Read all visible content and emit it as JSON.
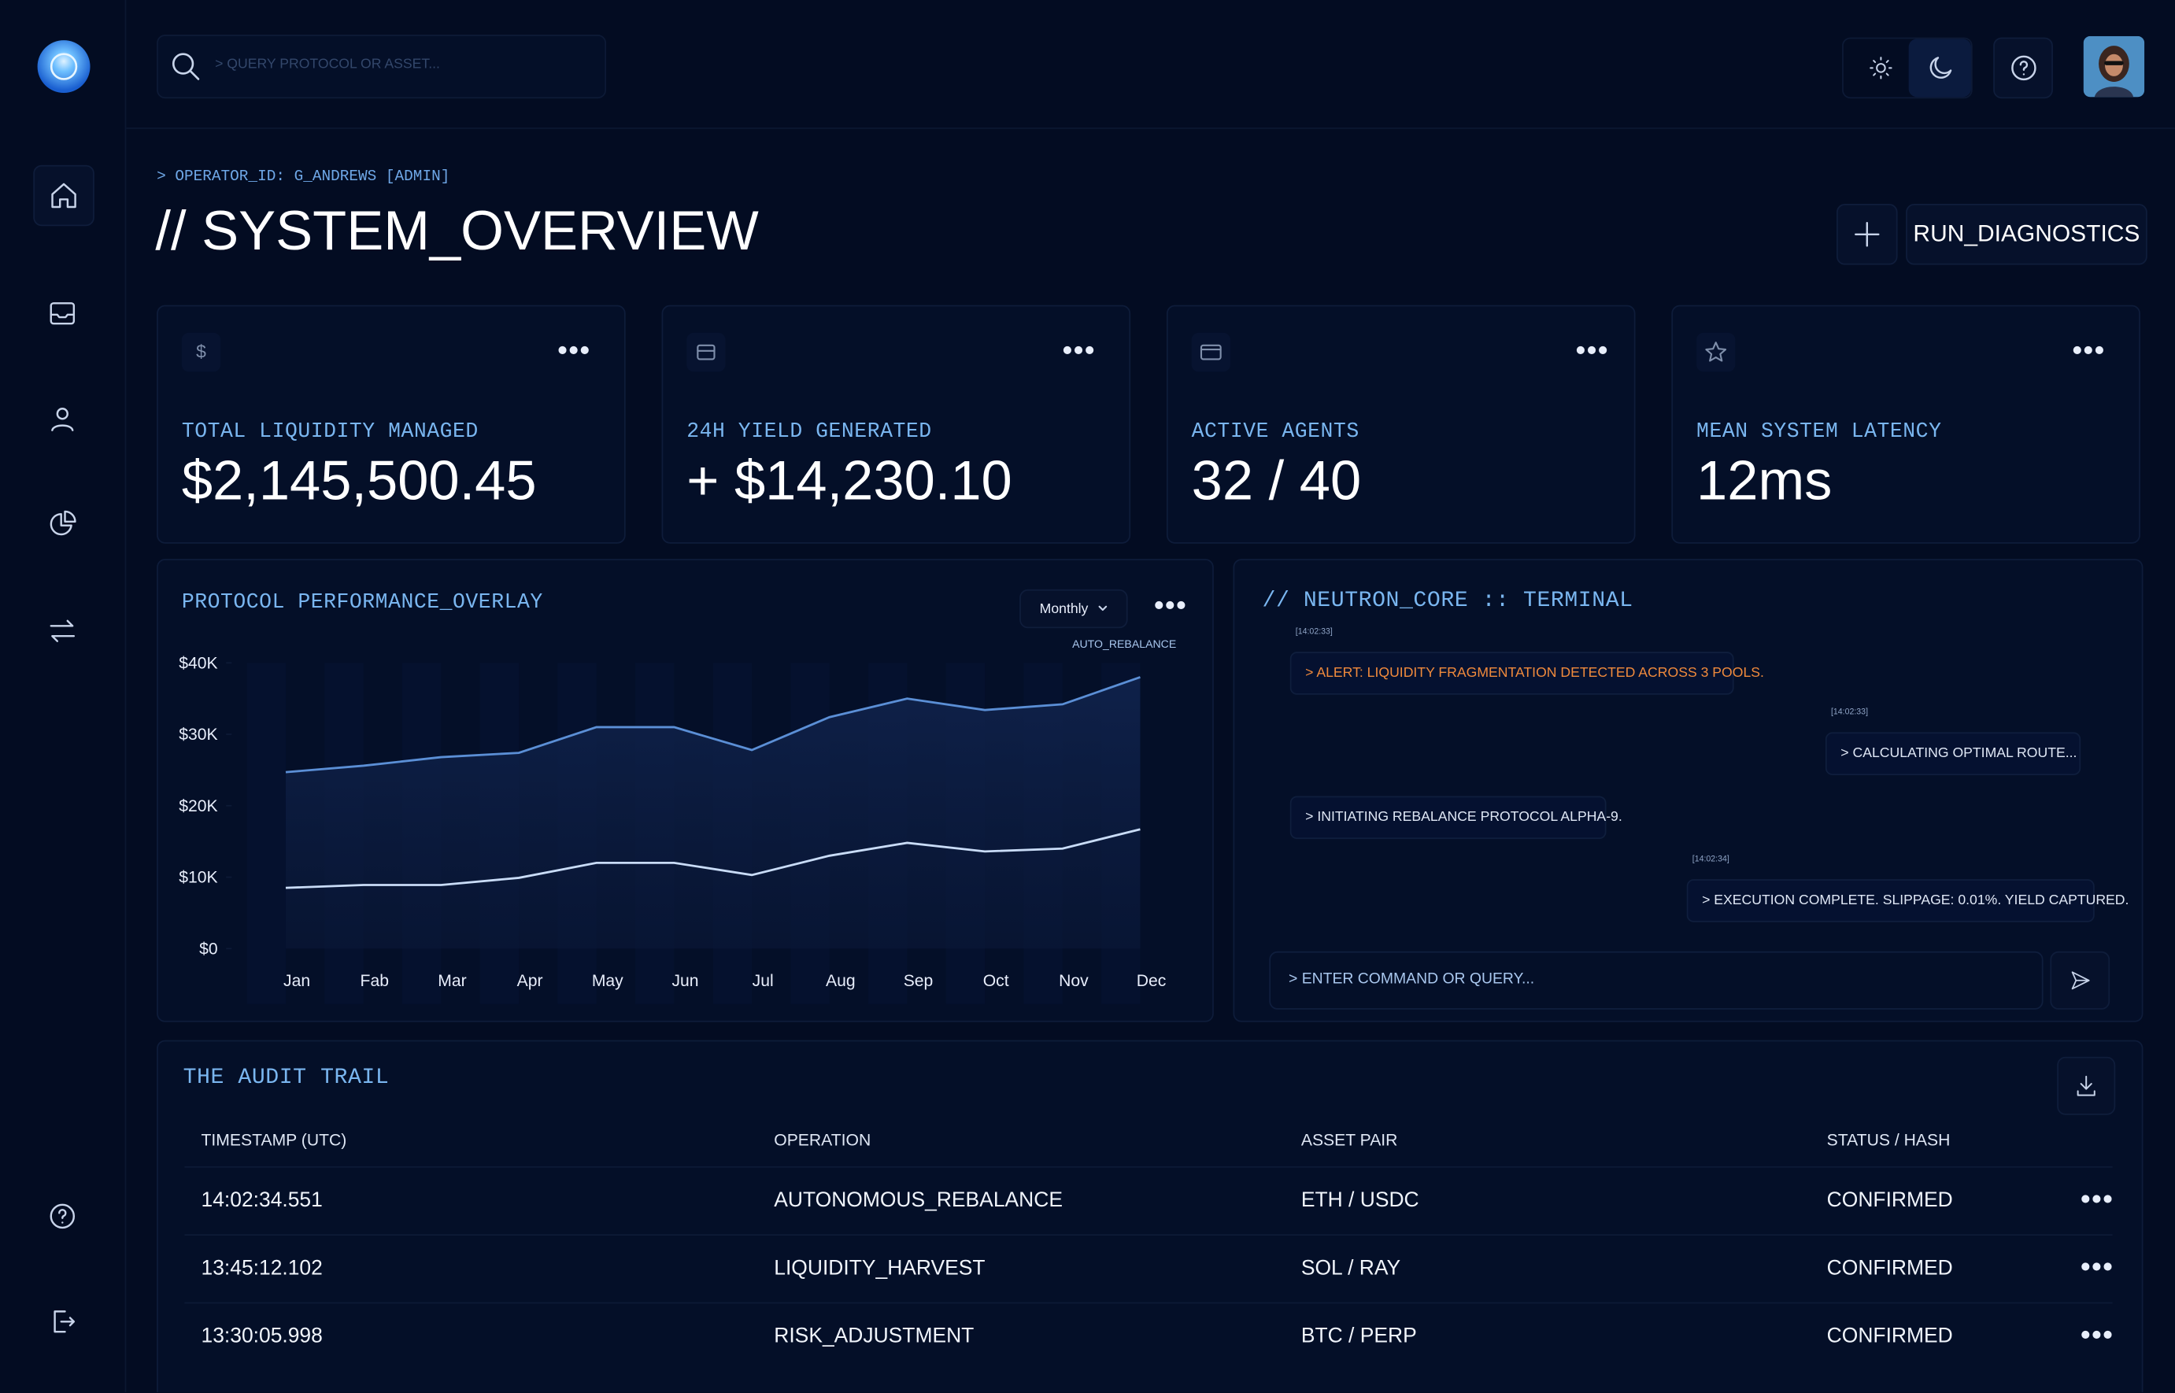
{
  "search_placeholder": "> QUERY PROTOCOL OR ASSET...",
  "operator": "> OPERATOR_ID: G_ANDREWS [ADMIN]",
  "page_title": "// SYSTEM_OVERVIEW",
  "diagnostics_button": "RUN_DIAGNOSTICS",
  "cards": [
    {
      "label": "TOTAL LIQUIDITY MANAGED",
      "value": "$2,145,500.45"
    },
    {
      "label": "24H YIELD GENERATED",
      "value": "+ $14,230.10"
    },
    {
      "label": "ACTIVE AGENTS",
      "value": "32 / 40"
    },
    {
      "label": "MEAN SYSTEM LATENCY",
      "value": "12ms"
    }
  ],
  "chart_data": {
    "type": "line",
    "title": "PROTOCOL PERFORMANCE_OVERLAY",
    "period": "Monthly",
    "annotation": "AUTO_REBALANCE",
    "categories": [
      "Jan",
      "Fab",
      "Mar",
      "Apr",
      "May",
      "Jun",
      "Jul",
      "Aug",
      "Sep",
      "Oct",
      "Nov",
      "Dec"
    ],
    "series": [
      {
        "color": "#5b8fd6",
        "values": [
          24700,
          25600,
          26800,
          27400,
          31000,
          31000,
          27800,
          32400,
          35000,
          33400,
          34200,
          38000
        ]
      },
      {
        "color": "#c9dcf7",
        "values": [
          8500,
          8900,
          8900,
          9900,
          12000,
          12000,
          10300,
          13000,
          14800,
          13600,
          14000,
          16700
        ]
      }
    ],
    "ylim": [
      0,
      40000
    ],
    "yticks": [
      {
        "value": 0,
        "label": "$0"
      },
      {
        "value": 10000,
        "label": "$10K"
      },
      {
        "value": 20000,
        "label": "$20K"
      },
      {
        "value": 30000,
        "label": "$30K"
      },
      {
        "value": 40000,
        "label": "$40K"
      }
    ]
  },
  "terminal": {
    "title": "// NEUTRON_CORE :: TERMINAL",
    "messages": [
      {
        "time": "[14:02:33]",
        "text": "> ALERT: LIQUIDITY FRAGMENTATION DETECTED ACROSS 3 POOLS."
      },
      {
        "time": "[14:02:33]",
        "text": "> CALCULATING OPTIMAL ROUTE..."
      },
      {
        "text": "> INITIATING REBALANCE PROTOCOL ALPHA-9."
      },
      {
        "time": "[14:02:34]",
        "text": "> EXECUTION COMPLETE. SLIPPAGE: 0.01%. YIELD CAPTURED."
      }
    ],
    "input_placeholder": "> ENTER COMMAND OR QUERY..."
  },
  "audit": {
    "title": "THE AUDIT TRAIL",
    "columns": [
      "TIMESTAMP (UTC)",
      "OPERATION",
      "ASSET PAIR",
      "STATUS / HASH"
    ],
    "rows": [
      [
        "14:02:34.551",
        "AUTONOMOUS_REBALANCE",
        "ETH / USDC",
        "CONFIRMED"
      ],
      [
        "13:45:12.102",
        "LIQUIDITY_HARVEST",
        "SOL / RAY",
        "CONFIRMED"
      ],
      [
        "13:30:05.998",
        "RISK_ADJUSTMENT",
        "BTC / PERP",
        "CONFIRMED"
      ]
    ]
  }
}
